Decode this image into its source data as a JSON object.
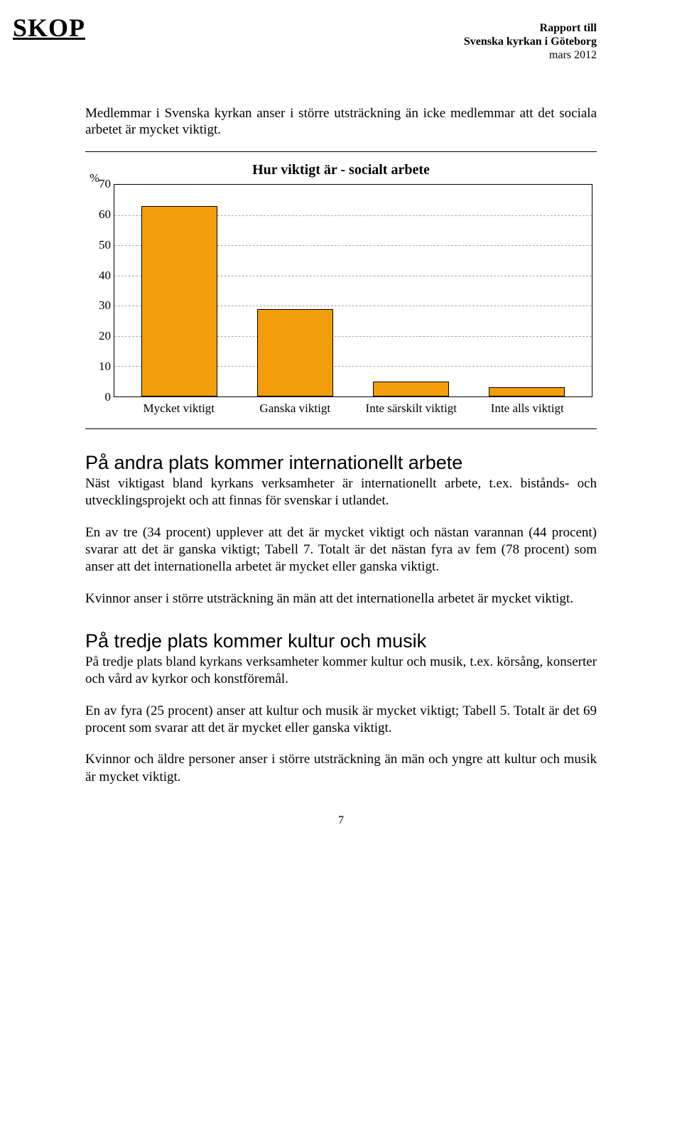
{
  "brand": "SKOP",
  "header": {
    "line1": "Rapport till",
    "line2": "Svenska kyrkan i Göteborg",
    "line3": "mars 2012"
  },
  "intro_paragraph": "Medlemmar i Svenska kyrkan anser i större utsträckning än icke medlemmar att det sociala arbetet är mycket viktigt.",
  "chart": {
    "type": "bar",
    "title": "Hur viktigt är - socialt arbete",
    "y_unit": "%",
    "y_max": 70,
    "y_ticks": [
      0,
      10,
      20,
      30,
      40,
      50,
      60,
      70
    ],
    "categories": [
      "Mycket viktigt",
      "Ganska viktigt",
      "Inte särskilt viktigt",
      "Inte alls viktigt"
    ],
    "values": [
      63,
      29,
      5,
      3
    ],
    "bar_fill": "#f59e0b",
    "bar_stroke": "#000000",
    "bar_width_pct": 66,
    "background_color": "#ffffff",
    "grid_color": "#aaaaaa",
    "axis_color": "#000000",
    "title_fontsize": 20,
    "label_fontsize": 17,
    "axis_fontsize": 17
  },
  "sections": {
    "s1": {
      "heading": "På andra plats kommer internationellt arbete",
      "p1": "Näst viktigast bland kyrkans verksamheter är internationellt arbete, t.ex. bistånds- och utvecklingsprojekt och att finnas för svenskar i utlandet.",
      "p2": "En av tre (34 procent) upplever att det är mycket viktigt och nästan varannan (44 procent) svarar att det är ganska viktigt; Tabell 7. Totalt är det nästan fyra av fem (78 procent) som anser att det internationella arbetet är mycket eller ganska viktigt.",
      "p3": "Kvinnor anser i större utsträckning än män att det internationella arbetet är mycket viktigt."
    },
    "s2": {
      "heading": "På tredje plats kommer kultur och musik",
      "p1": "På tredje plats bland kyrkans verksamheter kommer kultur och musik, t.ex. körsång, konserter och vård av kyrkor och konstföremål.",
      "p2": "En av fyra (25 procent) anser att kultur och musik är mycket viktigt; Tabell 5. Totalt är det 69 procent som svarar att det är mycket eller ganska viktigt.",
      "p3": "Kvinnor och äldre personer anser i större utsträckning än män och yngre att kultur och musik är mycket viktigt."
    }
  },
  "page_number": "7"
}
